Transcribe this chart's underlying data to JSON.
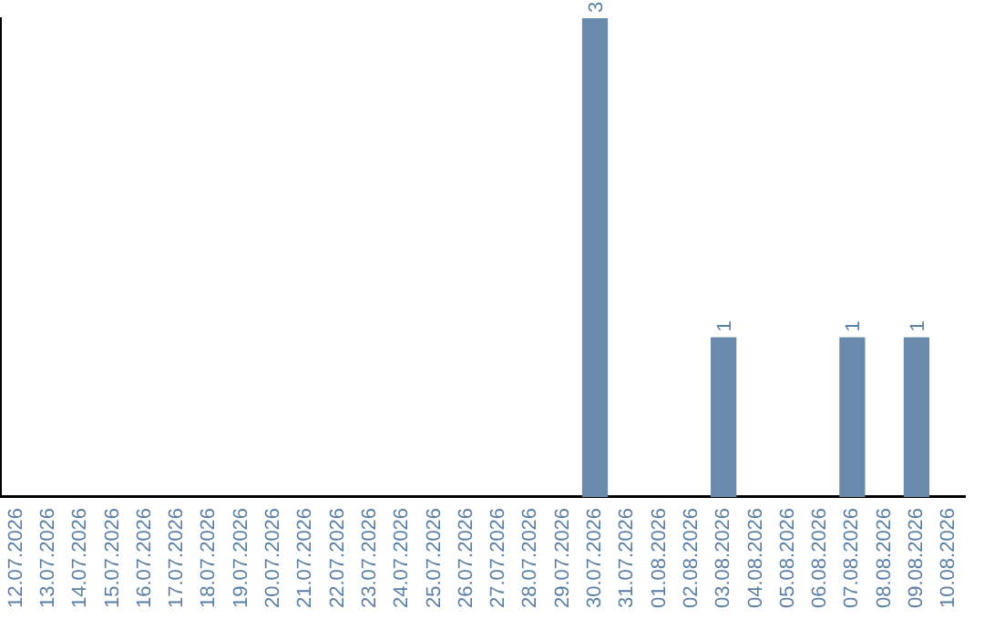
{
  "chart_data": {
    "type": "bar",
    "categories": [
      "12.07.2026",
      "13.07.2026",
      "14.07.2026",
      "15.07.2026",
      "16.07.2026",
      "17.07.2026",
      "18.07.2026",
      "19.07.2026",
      "20.07.2026",
      "21.07.2026",
      "22.07.2026",
      "23.07.2026",
      "24.07.2026",
      "25.07.2026",
      "26.07.2026",
      "27.07.2026",
      "28.07.2026",
      "29.07.2026",
      "30.07.2026",
      "31.07.2026",
      "01.08.2026",
      "02.08.2026",
      "03.08.2026",
      "04.08.2026",
      "05.08.2026",
      "06.08.2026",
      "07.08.2026",
      "08.08.2026",
      "09.08.2026",
      "10.08.2026"
    ],
    "values": [
      null,
      null,
      null,
      null,
      null,
      null,
      null,
      null,
      null,
      null,
      null,
      null,
      null,
      null,
      null,
      null,
      null,
      null,
      3,
      null,
      null,
      null,
      1,
      null,
      null,
      null,
      1,
      null,
      1,
      null
    ],
    "data_labels": true,
    "color": "#6a8aab",
    "tick_labels": "x",
    "grid": false,
    "legend": false
  }
}
